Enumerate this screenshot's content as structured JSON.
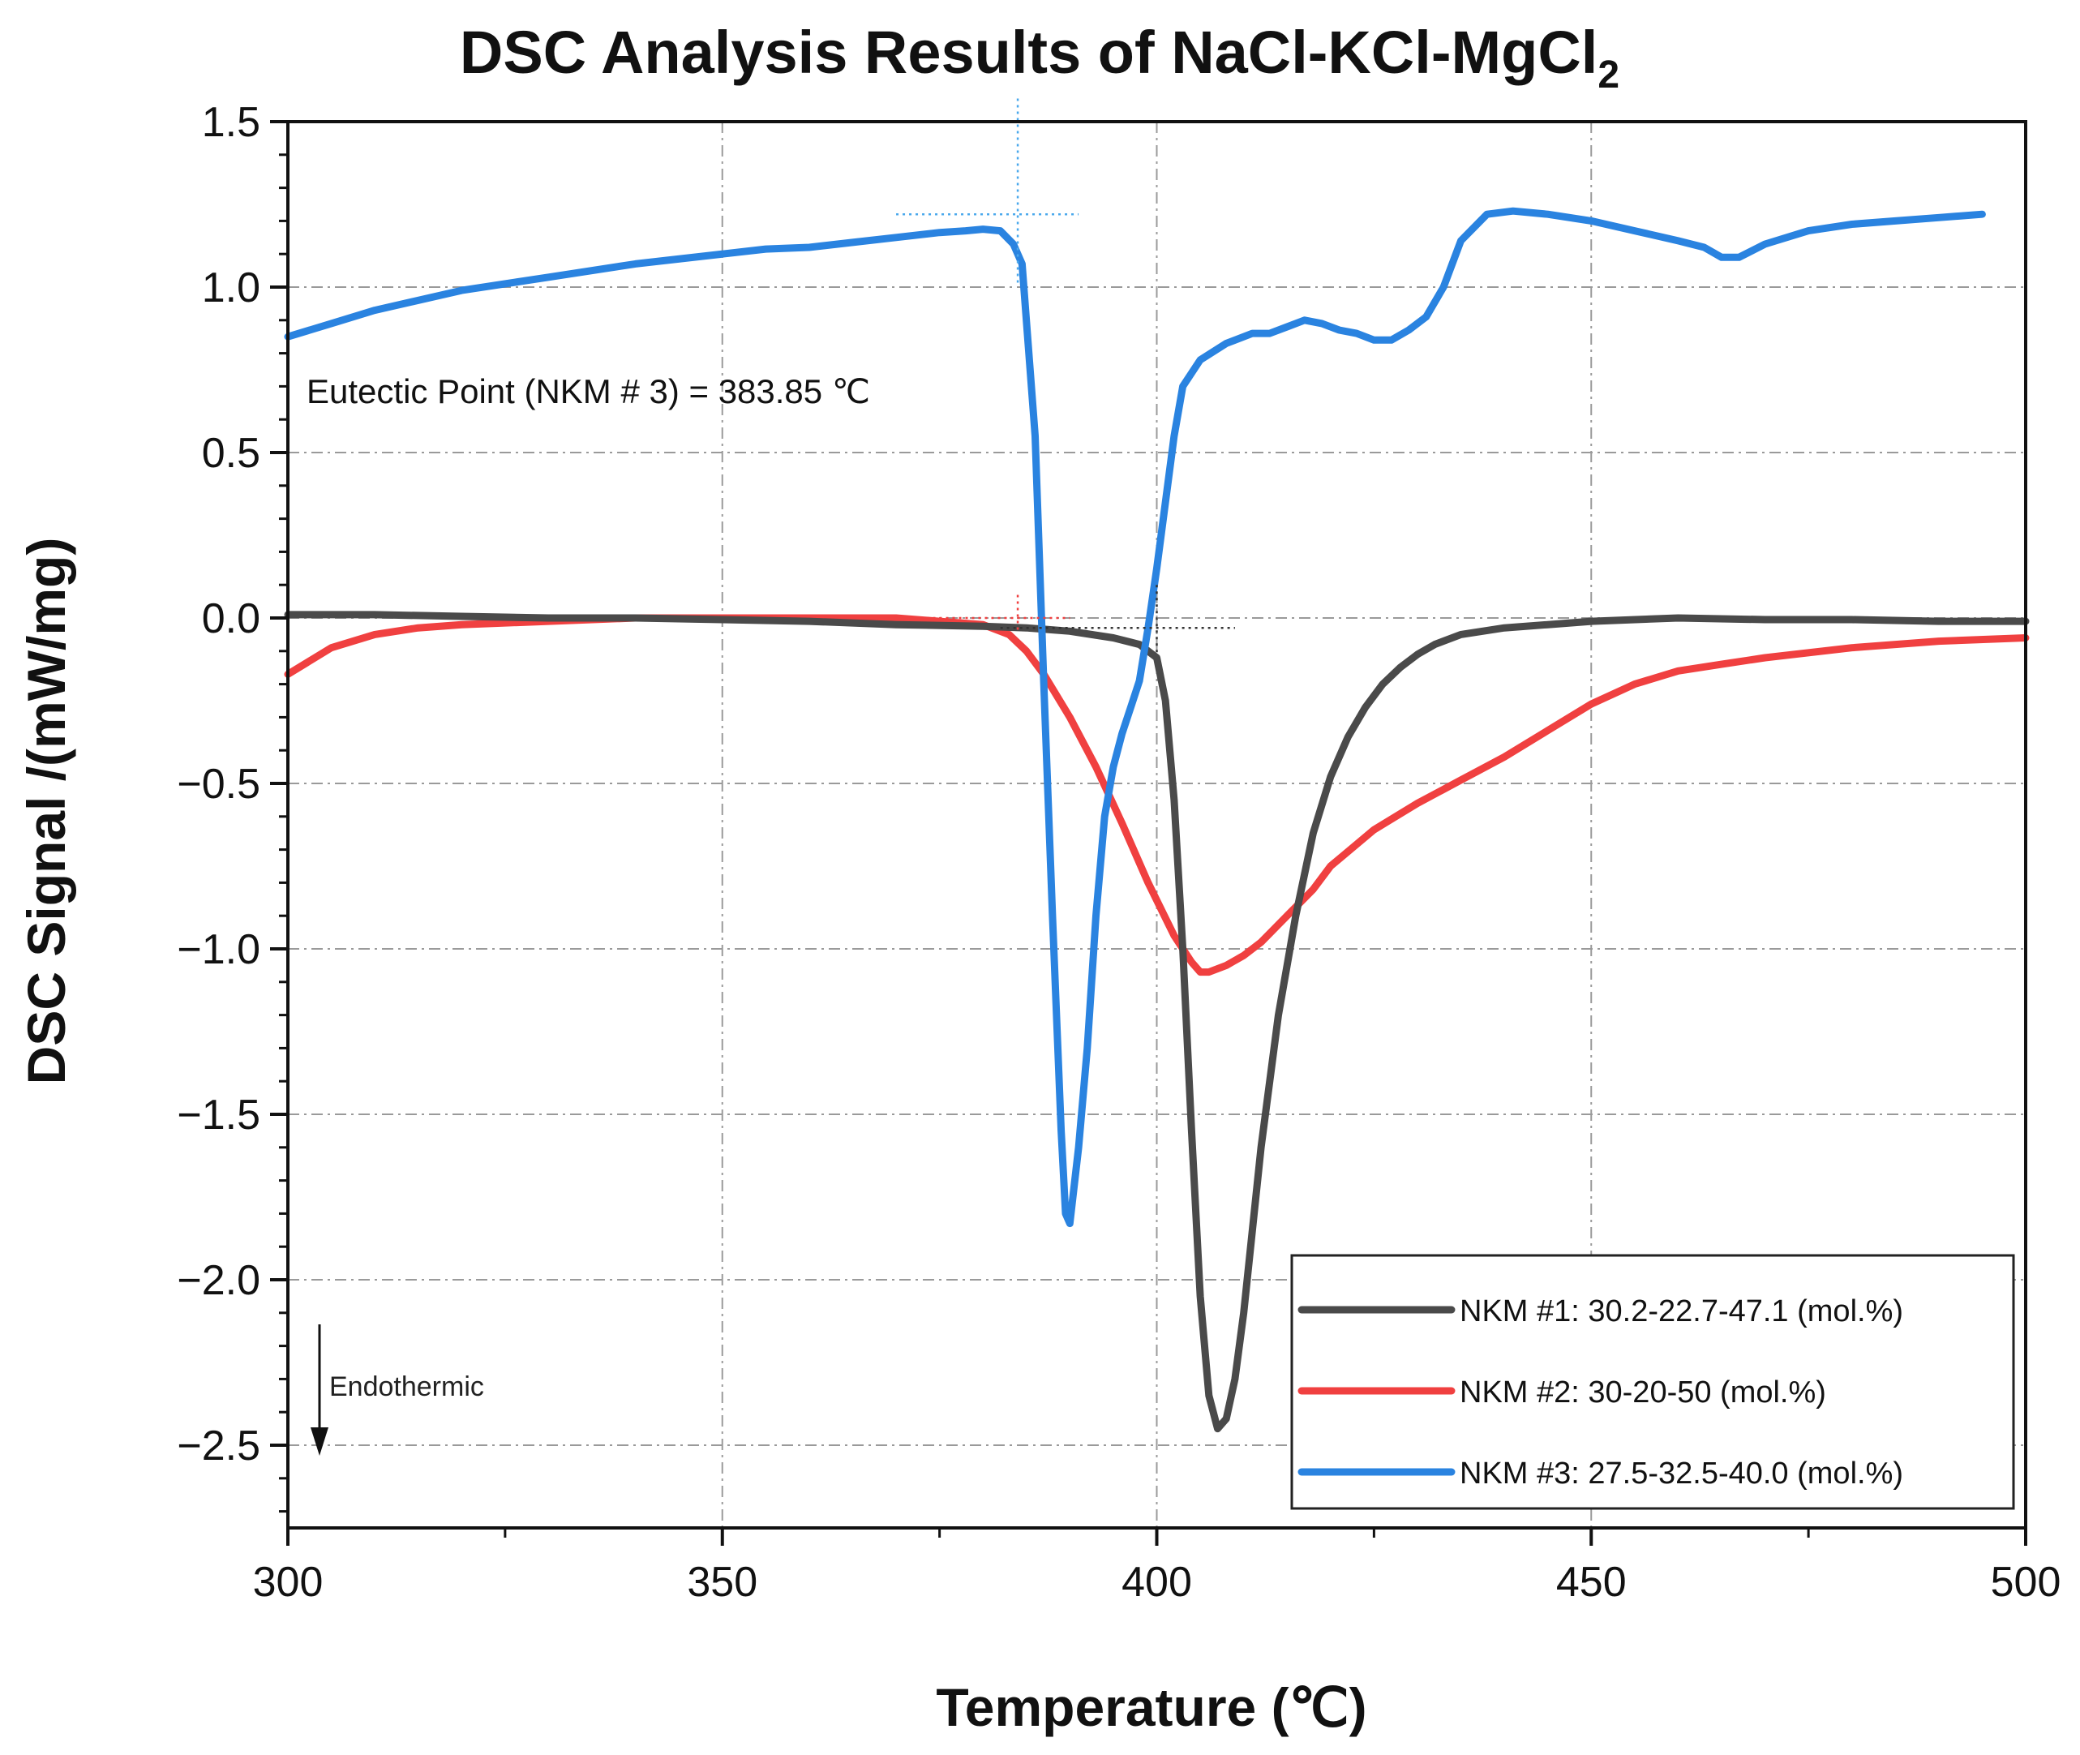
{
  "chart_data": {
    "type": "line",
    "title": "DSC Analysis Results of NaCl-KCl-MgCl",
    "title_subscript": "2",
    "xlabel": "Temperature (℃)",
    "ylabel": "DSC Signal /(mW/mg)",
    "xlim": [
      300,
      500
    ],
    "ylim": [
      -2.75,
      1.5
    ],
    "xticks": [
      300,
      350,
      400,
      450,
      500
    ],
    "xtick_labels": [
      "300",
      "350",
      "400",
      "450",
      "500"
    ],
    "yticks": [
      1.5,
      1.0,
      0.5,
      0.0,
      -0.5,
      -1.0,
      -1.5,
      -2.0,
      -2.5
    ],
    "ytick_labels": [
      "1.5",
      "1.0",
      "0.5",
      "0.0",
      "−0.5",
      "−1.0",
      "−1.5",
      "−2.0",
      "−2.5"
    ],
    "grid": true,
    "legend_position": "bottom-right",
    "annotations": {
      "eutectic": "Eutectic Point (NKM # 3) = 383.85 ℃",
      "endothermic": "Endothermic"
    },
    "series": [
      {
        "name": "NKM #1: 30.2-22.7-47.1 (mol.%)",
        "color": "#4a4a4a",
        "x": [
          300,
          310,
          320,
          330,
          340,
          350,
          360,
          370,
          380,
          385,
          390,
          395,
          398,
          400,
          401,
          402,
          403,
          404,
          405,
          406,
          407,
          408,
          409,
          410,
          411,
          412,
          414,
          416,
          418,
          420,
          422,
          424,
          426,
          428,
          430,
          432,
          435,
          440,
          445,
          450,
          460,
          470,
          480,
          490,
          500
        ],
        "y": [
          0.01,
          0.01,
          0.005,
          0.0,
          0.0,
          -0.005,
          -0.01,
          -0.02,
          -0.025,
          -0.03,
          -0.04,
          -0.06,
          -0.08,
          -0.12,
          -0.25,
          -0.55,
          -1.0,
          -1.55,
          -2.05,
          -2.35,
          -2.45,
          -2.42,
          -2.3,
          -2.1,
          -1.85,
          -1.6,
          -1.2,
          -0.9,
          -0.65,
          -0.48,
          -0.36,
          -0.27,
          -0.2,
          -0.15,
          -0.11,
          -0.08,
          -0.05,
          -0.03,
          -0.02,
          -0.01,
          0.0,
          -0.005,
          -0.005,
          -0.01,
          -0.01
        ]
      },
      {
        "name": "NKM #2: 30-20-50 (mol.%)",
        "color": "#f04040",
        "x": [
          300,
          305,
          310,
          315,
          320,
          330,
          340,
          350,
          360,
          370,
          375,
          380,
          383,
          385,
          387,
          390,
          393,
          396,
          399,
          402,
          404,
          405,
          406,
          408,
          410,
          412,
          415,
          418,
          420,
          425,
          430,
          435,
          440,
          445,
          450,
          455,
          460,
          465,
          470,
          480,
          490,
          500
        ],
        "y": [
          -0.17,
          -0.09,
          -0.05,
          -0.03,
          -0.02,
          -0.01,
          0.0,
          0.0,
          0.0,
          0.0,
          -0.01,
          -0.02,
          -0.05,
          -0.1,
          -0.17,
          -0.3,
          -0.45,
          -0.62,
          -0.8,
          -0.96,
          -1.04,
          -1.07,
          -1.07,
          -1.05,
          -1.02,
          -0.98,
          -0.9,
          -0.82,
          -0.75,
          -0.64,
          -0.56,
          -0.49,
          -0.42,
          -0.34,
          -0.26,
          -0.2,
          -0.16,
          -0.14,
          -0.12,
          -0.09,
          -0.07,
          -0.06
        ]
      },
      {
        "name": "NKM #3: 27.5-32.5-40.0 (mol.%)",
        "color": "#2a83e0",
        "x": [
          300,
          305,
          310,
          320,
          330,
          340,
          350,
          355,
          360,
          365,
          370,
          375,
          378,
          380,
          382,
          383.5,
          384.5,
          386,
          387,
          388,
          389,
          389.5,
          390,
          391,
          392,
          393,
          394,
          395,
          396,
          397,
          398,
          399,
          400,
          401,
          402,
          403,
          405,
          408,
          411,
          413,
          415,
          417,
          419,
          421,
          423,
          425,
          427,
          429,
          431,
          433,
          435,
          438,
          441,
          445,
          450,
          455,
          460,
          463,
          465,
          467,
          470,
          475,
          480,
          485,
          490,
          495
        ],
        "y": [
          0.85,
          0.89,
          0.93,
          0.99,
          1.03,
          1.07,
          1.1,
          1.115,
          1.12,
          1.135,
          1.15,
          1.165,
          1.17,
          1.175,
          1.17,
          1.13,
          1.07,
          0.55,
          -0.2,
          -0.9,
          -1.55,
          -1.8,
          -1.83,
          -1.6,
          -1.3,
          -0.9,
          -0.6,
          -0.45,
          -0.35,
          -0.27,
          -0.19,
          -0.03,
          0.15,
          0.35,
          0.55,
          0.7,
          0.78,
          0.83,
          0.86,
          0.86,
          0.88,
          0.9,
          0.89,
          0.87,
          0.86,
          0.84,
          0.84,
          0.87,
          0.91,
          1.0,
          1.14,
          1.22,
          1.23,
          1.22,
          1.2,
          1.17,
          1.14,
          1.12,
          1.09,
          1.09,
          1.13,
          1.17,
          1.19,
          1.2,
          1.21,
          1.22
        ]
      }
    ]
  }
}
